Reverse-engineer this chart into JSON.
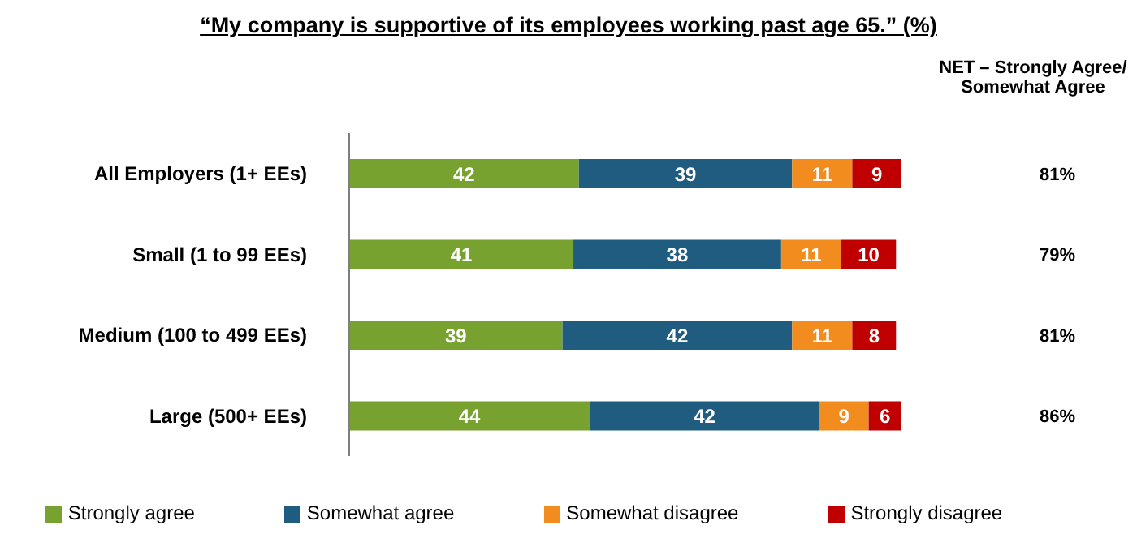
{
  "chart_data": {
    "type": "bar",
    "orientation": "horizontal",
    "stacked": true,
    "title": "“My company is supportive of its employees working past age 65.” (%)",
    "categories": [
      "All Employers (1+ EEs)",
      "Small (1 to 99 EEs)",
      "Medium (100 to 499 EEs)",
      "Large (500+ EEs)"
    ],
    "series": [
      {
        "name": "Strongly agree",
        "color": "#77a22f",
        "values": [
          42,
          41,
          39,
          44
        ]
      },
      {
        "name": "Somewhat agree",
        "color": "#1f5c7f",
        "values": [
          39,
          38,
          42,
          42
        ]
      },
      {
        "name": "Somewhat disagree",
        "color": "#f28c1e",
        "values": [
          11,
          11,
          11,
          9
        ]
      },
      {
        "name": "Strongly disagree",
        "color": "#c00000",
        "values": [
          9,
          10,
          8,
          6
        ]
      }
    ],
    "xlim": [
      0,
      101
    ],
    "tick_labels": "y",
    "data_labels": true,
    "legend": "bottom",
    "grid": false,
    "annotations": [
      "NET – Strongly Agree/ Somewhat Agree",
      "81%",
      "79%",
      "81%",
      "86%"
    ]
  }
}
